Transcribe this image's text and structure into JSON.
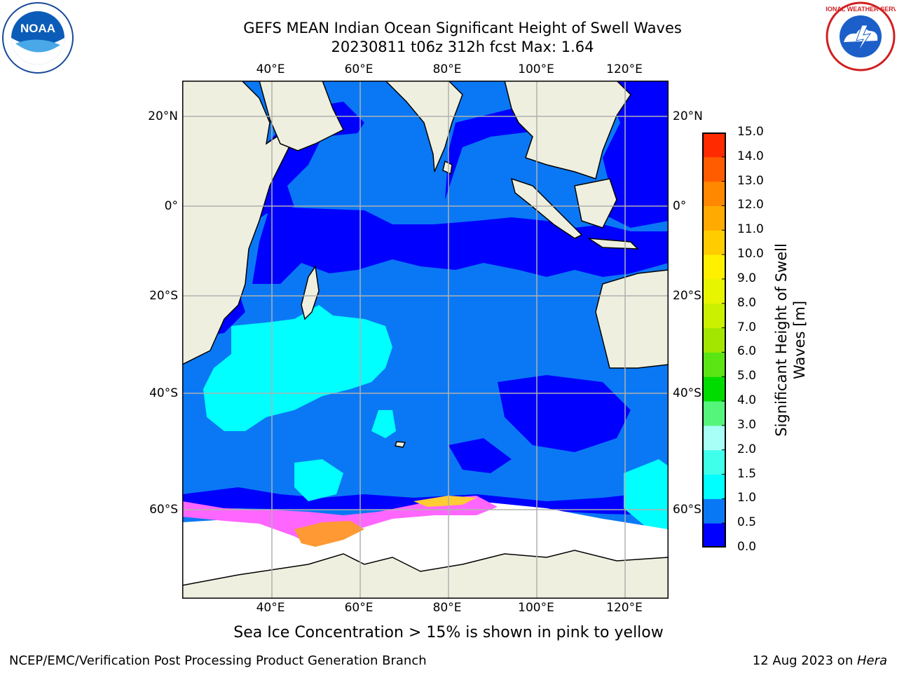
{
  "title": {
    "line1": "GEFS MEAN Indian Ocean Significant Height of Swell Waves",
    "line2": "20230811 t06z 312h fcst   Max: 1.64"
  },
  "axes": {
    "lon_ticks": [
      "40°E",
      "60°E",
      "80°E",
      "100°E",
      "120°E"
    ],
    "lat_ticks": [
      "20°N",
      "0°",
      "20°S",
      "40°S",
      "60°S"
    ]
  },
  "colorbar": {
    "title_line1": "Significant Height of Swell",
    "title_line2": "Waves [m]",
    "labels": [
      "0.0",
      "0.5",
      "1.0",
      "1.5",
      "2.0",
      "3.0",
      "4.0",
      "5.0",
      "6.0",
      "7.0",
      "8.0",
      "9.0",
      "10.0",
      "11.0",
      "12.0",
      "13.0",
      "14.0",
      "15.0"
    ],
    "colors": [
      "#0000ff",
      "#0a78f5",
      "#00ffff",
      "#40ffea",
      "#a8fff5",
      "#55f57c",
      "#00dc00",
      "#5be515",
      "#a3e600",
      "#cbf000",
      "#e8f500",
      "#fff000",
      "#ffcc00",
      "#ffaa00",
      "#ff8800",
      "#ff5c00",
      "#ff2a00"
    ]
  },
  "legend_note": "Sea Ice Concentration > 15% is shown in pink to yellow",
  "footer": {
    "left": "NCEP/EMC/Verification Post Processing Product Generation Branch",
    "right_prefix": "12 Aug 2023 on ",
    "right_host": "Hera"
  },
  "logos": {
    "left": "NOAA",
    "right": "NATIONAL WEATHER SERVICE"
  },
  "map_colors": {
    "land": "#efefdf",
    "low": "#0000ff",
    "mid": "#0a78f5",
    "high": "#00ffff",
    "ice": "#ffffff",
    "ice_edge_pink": "#ff66ff",
    "ice_edge_orange": "#ff9933",
    "ice_edge_yellow": "#ffcc33",
    "grid": "#b0b0b0"
  }
}
